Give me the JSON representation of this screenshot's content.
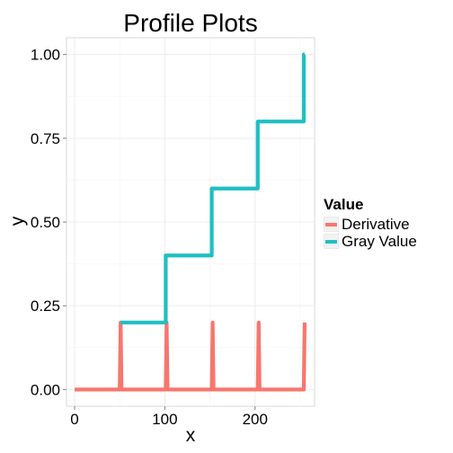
{
  "chart_data": {
    "type": "line",
    "title": "Profile Plots",
    "xlabel": "x",
    "ylabel": "y",
    "xlim": [
      -9,
      266
    ],
    "ylim": [
      -0.05,
      1.05
    ],
    "x_ticks": [
      0,
      100,
      200
    ],
    "x_tick_labels": [
      "0",
      "100",
      "200"
    ],
    "y_ticks": [
      0,
      0.25,
      0.5,
      0.75,
      1
    ],
    "y_tick_labels": [
      "0.00",
      "0.25",
      "0.50",
      "0.75",
      "1.00"
    ],
    "grid": true,
    "legend": {
      "title": "Value",
      "position": "right"
    },
    "series": [
      {
        "name": "Derivative",
        "color": "#f8766d",
        "x": [
          0,
          50,
          51,
          52,
          101,
          102,
          103,
          152,
          153,
          154,
          203,
          204,
          205,
          254,
          255
        ],
        "y": [
          0,
          0,
          0.2,
          0,
          0,
          0.2,
          0,
          0,
          0.2,
          0,
          0,
          0.2,
          0,
          0,
          0.2
        ]
      },
      {
        "name": "Gray Value",
        "color": "#1fbfc3",
        "x": [
          51,
          101,
          101,
          152,
          152,
          203,
          203,
          254,
          254,
          255
        ],
        "y": [
          0.2,
          0.2,
          0.4,
          0.4,
          0.6,
          0.6,
          0.8,
          0.8,
          1.0,
          1.0
        ]
      }
    ]
  }
}
